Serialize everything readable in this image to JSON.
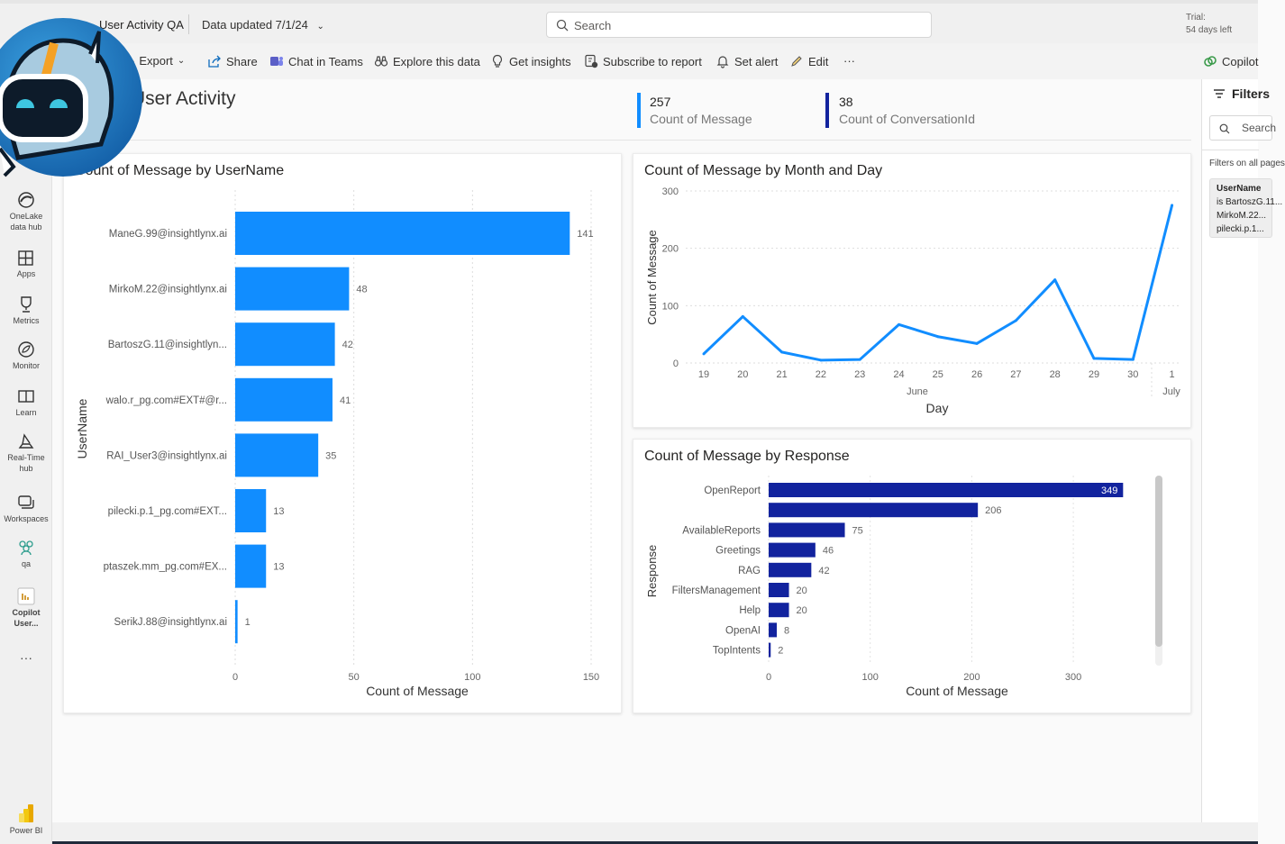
{
  "header": {
    "report_title": "User Activity QA",
    "data_updated": "Data updated 7/1/24",
    "search_placeholder": "Search",
    "trial_line1": "Trial:",
    "trial_line2": "54 days left"
  },
  "toolbar": {
    "export": "Export",
    "share": "Share",
    "chat_in_teams": "Chat in Teams",
    "explore": "Explore this data",
    "insights": "Get insights",
    "subscribe": "Subscribe to report",
    "set_alert": "Set alert",
    "edit": "Edit",
    "more": "···",
    "copilot": "Copilot"
  },
  "sidebar": {
    "items": [
      {
        "label1": "OneLake",
        "label2": "data hub"
      },
      {
        "label1": "Apps"
      },
      {
        "label1": "Metrics"
      },
      {
        "label1": "Monitor"
      },
      {
        "label1": "Learn"
      },
      {
        "label1": "Real-Time",
        "label2": "hub"
      },
      {
        "label1": "Workspaces"
      },
      {
        "label1": "qa"
      },
      {
        "label1": "Copilot",
        "label2": "User..."
      }
    ],
    "more": "···",
    "powerbi": "Power BI"
  },
  "page": {
    "title": "User Activity"
  },
  "kpis": [
    {
      "value": "257",
      "label": "Count of Message",
      "color": "#118DFF"
    },
    {
      "value": "38",
      "label": "Count of ConversationId",
      "color": "#12239E"
    }
  ],
  "filters": {
    "title": "Filters",
    "search": "Search",
    "filters_on": "Filters on all pages",
    "card_title": "UserName",
    "card_l1": "is BartoszG.11...",
    "card_l2": "MirkoM.22...",
    "card_l3": "pilecki.p.1..."
  },
  "chart_data": [
    {
      "type": "bar",
      "orientation": "horizontal",
      "title": "Count of Message by UserName",
      "xlabel": "Count of Message",
      "ylabel": "UserName",
      "xlim": [
        0,
        150
      ],
      "xticks": [
        "0",
        "50",
        "100",
        "150"
      ],
      "color": "#118DFF",
      "grid": true,
      "categories": [
        "ManeG.99@insightlynx.ai",
        "MirkoM.22@insightlynx.ai",
        "BartoszG.11@insightlyn...",
        "walo.r_pg.com#EXT#@r...",
        "RAI_User3@insightlynx.ai",
        "pilecki.p.1_pg.com#EXT...",
        "ptaszek.mm_pg.com#EX...",
        "SerikJ.88@insightlynx.ai"
      ],
      "values": [
        141,
        48,
        42,
        41,
        35,
        13,
        13,
        1
      ]
    },
    {
      "type": "line",
      "title": "Count of Message by Month and Day",
      "xlabel": "Day",
      "ylabel": "Count of Message",
      "ylim": [
        0,
        300
      ],
      "yticks": [
        "0",
        "100",
        "200",
        "300"
      ],
      "color": "#118DFF",
      "grid": true,
      "x": [
        "19",
        "20",
        "21",
        "22",
        "23",
        "24",
        "25",
        "26",
        "27",
        "28",
        "29",
        "30",
        "1"
      ],
      "months": [
        "June",
        "July"
      ],
      "values": [
        16,
        81,
        19,
        5,
        6,
        67,
        46,
        34,
        74,
        145,
        8,
        6,
        275
      ]
    },
    {
      "type": "bar",
      "orientation": "horizontal",
      "title": "Count of Message by Response",
      "xlabel": "Count of Message",
      "ylabel": "Response",
      "xlim": [
        0,
        350
      ],
      "xticks": [
        "0",
        "100",
        "200",
        "300"
      ],
      "color": "#12239E",
      "grid": true,
      "categories": [
        "OpenReport",
        "",
        "AvailableReports",
        "Greetings",
        "RAG",
        "FiltersManagement",
        "Help",
        "OpenAI",
        "TopIntents"
      ],
      "values": [
        349,
        206,
        75,
        46,
        42,
        20,
        20,
        8,
        2
      ]
    }
  ]
}
